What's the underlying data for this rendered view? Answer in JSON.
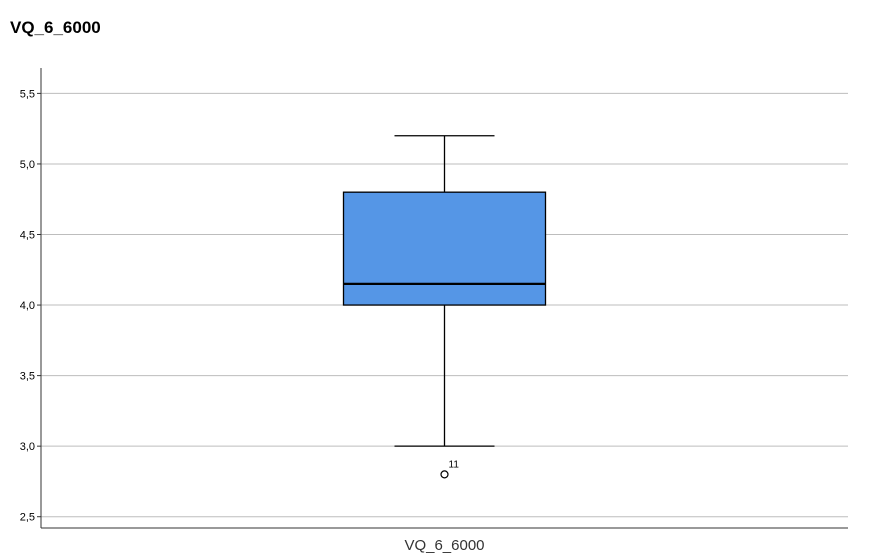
{
  "chart_data": {
    "type": "boxplot",
    "title": "VQ_6_6000",
    "category": "VQ_6_6000",
    "y_ticks": [
      "2,5",
      "3,0",
      "3,5",
      "4,0",
      "4,5",
      "5,0",
      "5,5"
    ],
    "ylim": [
      2.42,
      5.68
    ],
    "grid": true,
    "box": {
      "whisker_low": 3.0,
      "q1": 4.0,
      "median": 4.15,
      "q3": 4.8,
      "whisker_high": 5.2,
      "fill_color": "#5596e6"
    },
    "outliers": [
      {
        "value": 2.8,
        "label": "11"
      }
    ]
  }
}
